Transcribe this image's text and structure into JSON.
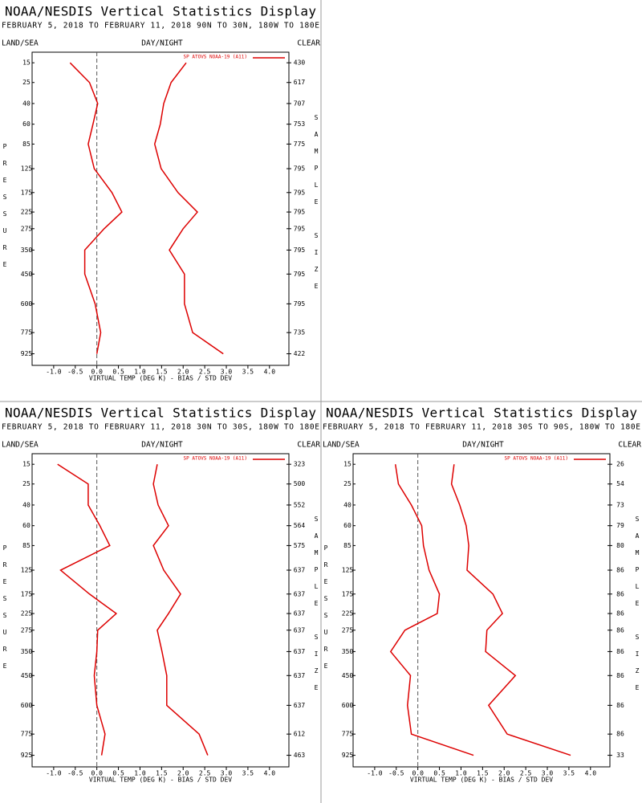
{
  "chart_data": [
    {
      "type": "line",
      "orientation": "horizontal",
      "title": "NOAA/NESDIS Vertical Statistics Display",
      "subtitle": "FEBRUARY 5, 2018 TO FEBRUARY 11, 2018 90N TO 30N, 180W TO 180E",
      "left_label": "LAND/SEA",
      "center_label": "DAY/NIGHT",
      "right_label": "CLEAR",
      "ylabel": "PRESSURE",
      "y2label": "SAMPLE SIZE",
      "xlabel": "VIRTUAL TEMP (DEG K) - BIAS / STD DEV",
      "legend": "SP ATOVS NOAA-19 (A11)",
      "y": [
        15,
        25,
        40,
        60,
        85,
        125,
        175,
        225,
        275,
        350,
        450,
        600,
        775,
        925
      ],
      "y_scale": "power",
      "y_power": 0.3,
      "y_reversed": true,
      "ylim": [
        11,
        1015
      ],
      "sample_size": [
        430,
        617,
        707,
        753,
        775,
        795,
        795,
        795,
        795,
        795,
        795,
        795,
        735,
        422
      ],
      "xlim": [
        -1.5,
        4.45
      ],
      "xticks": [
        {
          "value": -1,
          "label": "-1.0"
        },
        -0.5,
        {
          "value": 0,
          "label": "0.0"
        },
        0.5,
        {
          "value": 1,
          "label": "1.0"
        },
        1.5,
        {
          "value": 2,
          "label": "2.0"
        },
        2.5,
        {
          "value": 3,
          "label": "3.0"
        },
        3.5,
        {
          "value": 4,
          "label": "4.0"
        }
      ],
      "zero_line": true,
      "series": [
        {
          "color": "#dd0000",
          "values": [
            -0.62,
            -0.17,
            0.02,
            -0.09,
            -0.2,
            -0.06,
            0.35,
            0.58,
            0.17,
            -0.28,
            -0.28,
            -0.04,
            0.09,
            0.0
          ]
        },
        {
          "color": "#dd0000",
          "values": [
            2.07,
            1.72,
            1.55,
            1.47,
            1.34,
            1.49,
            1.88,
            2.33,
            2.0,
            1.68,
            2.03,
            2.03,
            2.22,
            2.93
          ]
        }
      ]
    },
    {
      "type": "line",
      "orientation": "horizontal",
      "title": "NOAA/NESDIS Vertical Statistics Display",
      "subtitle": "FEBRUARY 5, 2018 TO FEBRUARY 11, 2018 30N TO 30S, 180W TO 180E",
      "left_label": "LAND/SEA",
      "center_label": "DAY/NIGHT",
      "right_label": "CLEAR",
      "ylabel": "PRESSURE",
      "y2label": "SAMPLE SIZE",
      "xlabel": "VIRTUAL TEMP (DEG K) - BIAS / STD DEV",
      "legend": "SP ATOVS NOAA-19 (A11)",
      "y": [
        15,
        25,
        40,
        60,
        85,
        125,
        175,
        225,
        275,
        350,
        450,
        600,
        775,
        925
      ],
      "y_scale": "power",
      "y_power": 0.3,
      "y_reversed": true,
      "ylim": [
        11,
        1015
      ],
      "sample_size": [
        323,
        500,
        552,
        564,
        575,
        637,
        637,
        637,
        637,
        637,
        637,
        637,
        612,
        463
      ],
      "xlim": [
        -1.5,
        4.45
      ],
      "xticks": [
        {
          "value": -1,
          "label": "-1.0"
        },
        -0.5,
        {
          "value": 0,
          "label": "0.0"
        },
        0.5,
        {
          "value": 1,
          "label": "1.0"
        },
        1.5,
        {
          "value": 2,
          "label": "2.0"
        },
        2.5,
        {
          "value": 3,
          "label": "3.0"
        },
        3.5,
        {
          "value": 4,
          "label": "4.0"
        }
      ],
      "zero_line": true,
      "series": [
        {
          "color": "#dd0000",
          "values": [
            -0.91,
            -0.2,
            -0.2,
            0.07,
            0.3,
            -0.84,
            -0.17,
            0.45,
            0.02,
            0.0,
            -0.06,
            0.0,
            0.19,
            0.11
          ]
        },
        {
          "color": "#dd0000",
          "values": [
            1.4,
            1.31,
            1.42,
            1.66,
            1.31,
            1.55,
            1.94,
            1.66,
            1.4,
            1.51,
            1.62,
            1.62,
            2.37,
            2.57
          ]
        }
      ]
    },
    {
      "type": "line",
      "orientation": "horizontal",
      "title": "NOAA/NESDIS Vertical Statistics Display",
      "subtitle": "FEBRUARY 5, 2018 TO FEBRUARY 11, 2018 30S TO 90S, 180W TO 180E",
      "left_label": "LAND/SEA",
      "center_label": "DAY/NIGHT",
      "right_label": "CLEAR",
      "ylabel": "PRESSURE",
      "y2label": "SAMPLE SIZE",
      "xlabel": "VIRTUAL TEMP (DEG K) - BIAS / STD DEV",
      "legend": "SP ATOVS NOAA-19 (A11)",
      "y": [
        15,
        25,
        40,
        60,
        85,
        125,
        175,
        225,
        275,
        350,
        450,
        600,
        775,
        925
      ],
      "y_scale": "power",
      "y_power": 0.3,
      "y_reversed": true,
      "ylim": [
        11,
        1015
      ],
      "sample_size": [
        26,
        54,
        73,
        79,
        80,
        86,
        86,
        86,
        86,
        86,
        86,
        86,
        86,
        33
      ],
      "xlim": [
        -1.5,
        4.45
      ],
      "xticks": [
        {
          "value": -1,
          "label": "-1.0"
        },
        -0.5,
        {
          "value": 0,
          "label": "0.0"
        },
        0.5,
        {
          "value": 1,
          "label": "1.0"
        },
        1.5,
        {
          "value": 2,
          "label": "2.0"
        },
        2.5,
        {
          "value": 3,
          "label": "3.0"
        },
        3.5,
        {
          "value": 4,
          "label": "4.0"
        }
      ],
      "zero_line": true,
      "series": [
        {
          "color": "#dd0000",
          "values": [
            -0.52,
            -0.45,
            -0.15,
            0.09,
            0.13,
            0.26,
            0.5,
            0.45,
            -0.3,
            -0.63,
            -0.17,
            -0.24,
            -0.15,
            1.29
          ]
        },
        {
          "color": "#dd0000",
          "values": [
            0.84,
            0.78,
            0.97,
            1.12,
            1.18,
            1.14,
            1.74,
            1.96,
            1.6,
            1.57,
            2.26,
            1.64,
            2.07,
            3.54
          ]
        }
      ]
    }
  ]
}
